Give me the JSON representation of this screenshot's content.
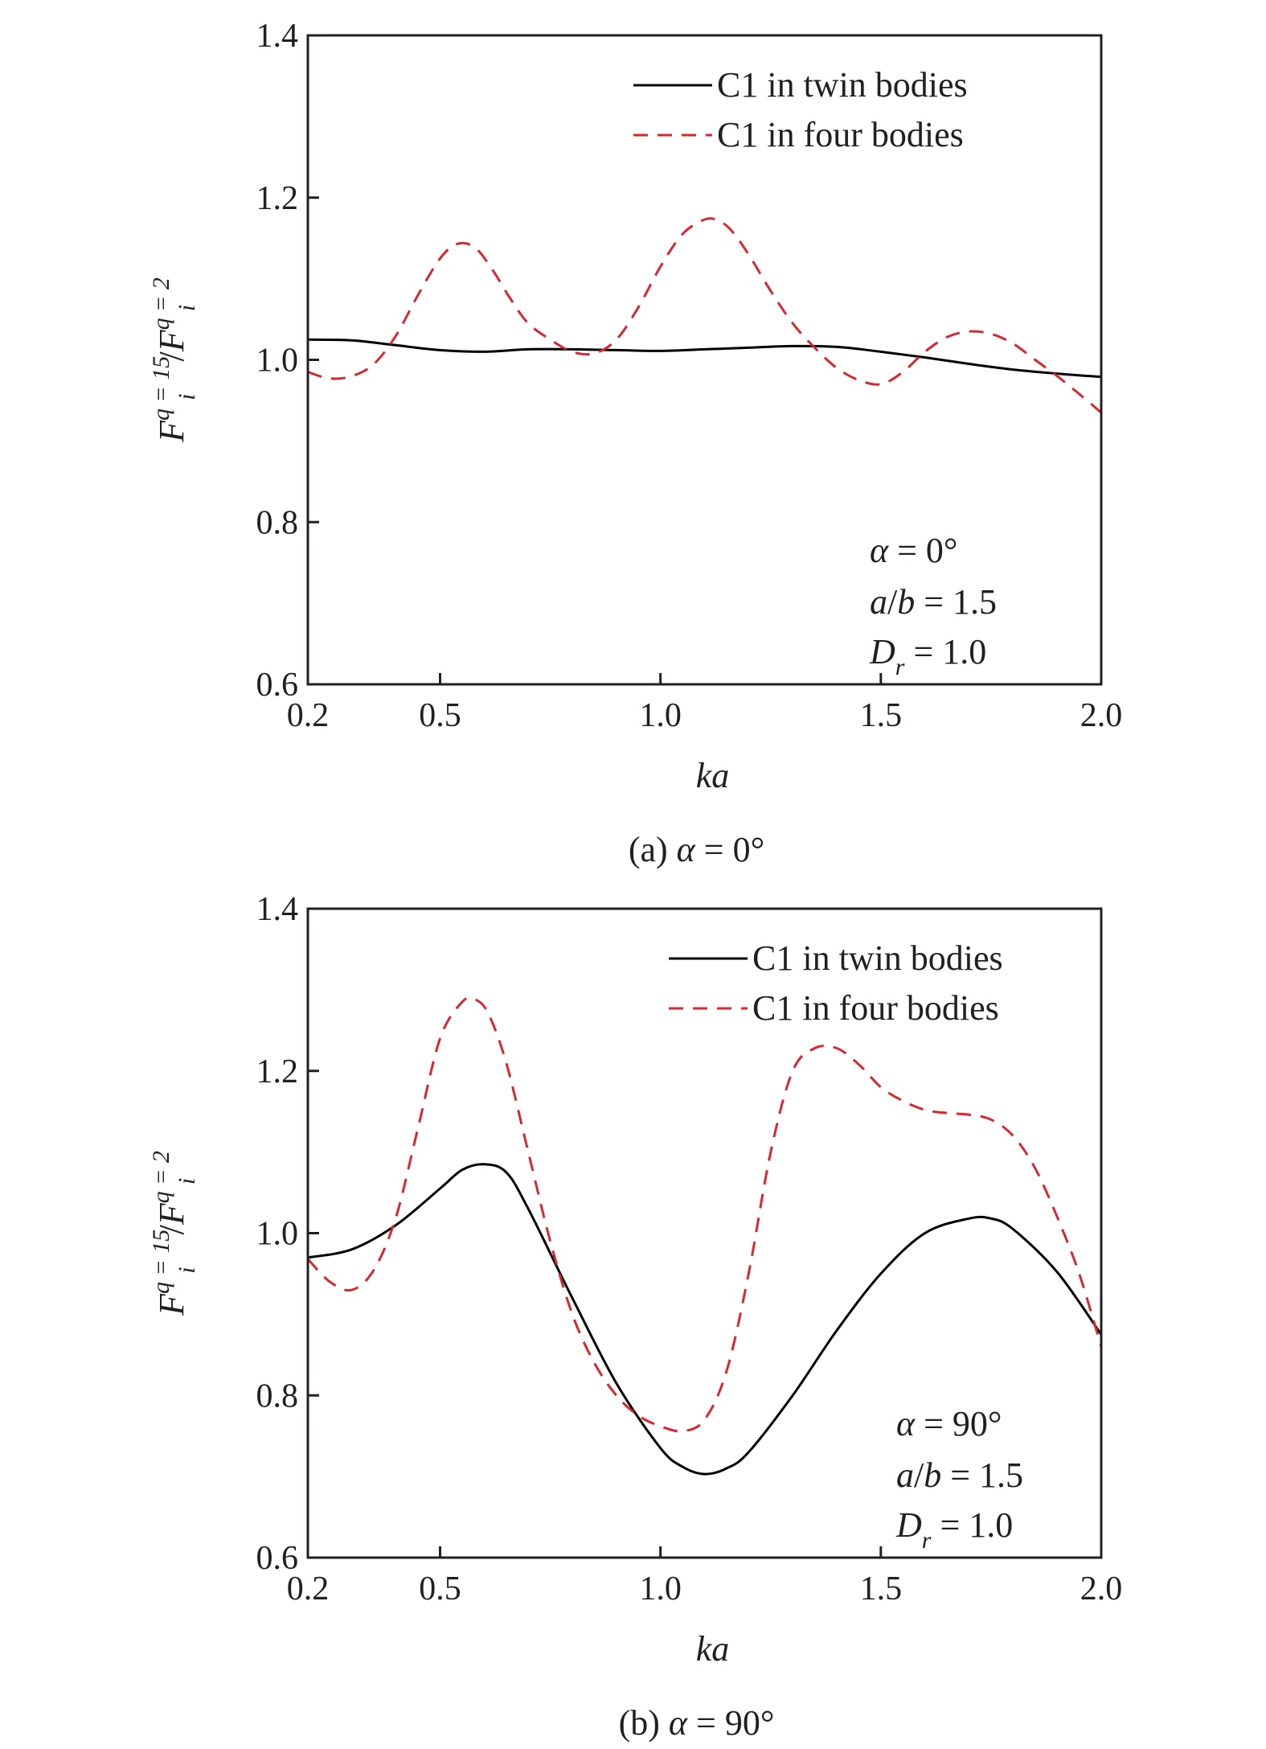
{
  "chart_data": [
    {
      "type": "line",
      "panel_caption": {
        "prefix": "(a)",
        "symbol": "α",
        "value": "= 0°"
      },
      "xlabel": "ka",
      "ylabel": {
        "base": "F",
        "sub": "i",
        "sup_num": "q = 15",
        "sup_den": "q = 2"
      },
      "xlim": [
        0.2,
        2.0
      ],
      "ylim": [
        0.6,
        1.4
      ],
      "xticks": [
        0.2,
        0.5,
        1.0,
        1.5,
        2.0
      ],
      "xtick_labels": [
        "0.2",
        "0.5",
        "1.0",
        "1.5",
        "2.0"
      ],
      "yticks": [
        0.6,
        0.8,
        1.0,
        1.2,
        1.4
      ],
      "ytick_labels": [
        "0.6",
        "0.8",
        "1.0",
        "1.2",
        "1.4"
      ],
      "legend_position": "top-right",
      "annotation": {
        "line1": {
          "sym": "α",
          "rest": " = 0°"
        },
        "line2": {
          "a": "a",
          "slash": "/",
          "b": "b",
          "rest": " = 1.5"
        },
        "line3": {
          "sym": "D",
          "sub": "r",
          "rest": " = 1.0"
        }
      },
      "series": [
        {
          "name": "C1 in twin bodies",
          "style": "solid",
          "color": "#000000",
          "x": [
            0.2,
            0.3,
            0.4,
            0.5,
            0.6,
            0.7,
            0.8,
            0.9,
            1.0,
            1.1,
            1.2,
            1.3,
            1.4,
            1.5,
            1.6,
            1.7,
            1.8,
            1.9,
            2.0
          ],
          "y": [
            1.025,
            1.024,
            1.018,
            1.012,
            1.01,
            1.013,
            1.013,
            1.012,
            1.011,
            1.013,
            1.015,
            1.017,
            1.016,
            1.01,
            1.003,
            0.995,
            0.988,
            0.983,
            0.979
          ]
        },
        {
          "name": "C1 in four bodies",
          "style": "dashed",
          "color": "#d7282f",
          "x": [
            0.2,
            0.25,
            0.3,
            0.35,
            0.4,
            0.45,
            0.5,
            0.54,
            0.58,
            0.62,
            0.66,
            0.7,
            0.75,
            0.8,
            0.85,
            0.9,
            0.95,
            1.0,
            1.05,
            1.1,
            1.13,
            1.16,
            1.2,
            1.25,
            1.3,
            1.35,
            1.4,
            1.45,
            1.5,
            1.55,
            1.6,
            1.65,
            1.7,
            1.75,
            1.8,
            1.85,
            1.9,
            1.95,
            2.0
          ],
          "y": [
            0.985,
            0.977,
            0.98,
            0.995,
            1.03,
            1.08,
            1.125,
            1.143,
            1.138,
            1.11,
            1.075,
            1.045,
            1.025,
            1.01,
            1.008,
            1.025,
            1.065,
            1.115,
            1.155,
            1.173,
            1.172,
            1.16,
            1.13,
            1.085,
            1.045,
            1.015,
            0.99,
            0.975,
            0.97,
            0.985,
            1.01,
            1.028,
            1.035,
            1.032,
            1.02,
            1.0,
            0.98,
            0.958,
            0.935
          ]
        }
      ]
    },
    {
      "type": "line",
      "panel_caption": {
        "prefix": "(b)",
        "symbol": "α",
        "value": "= 90°"
      },
      "xlabel": "ka",
      "ylabel": {
        "base": "F",
        "sub": "i",
        "sup_num": "q = 15",
        "sup_den": "q = 2"
      },
      "xlim": [
        0.2,
        2.0
      ],
      "ylim": [
        0.6,
        1.4
      ],
      "xticks": [
        0.2,
        0.5,
        1.0,
        1.5,
        2.0
      ],
      "xtick_labels": [
        "0.2",
        "0.5",
        "1.0",
        "1.5",
        "2.0"
      ],
      "yticks": [
        0.6,
        0.8,
        1.0,
        1.2,
        1.4
      ],
      "ytick_labels": [
        "0.6",
        "0.8",
        "1.0",
        "1.2",
        "1.4"
      ],
      "legend_position": "top-right",
      "annotation": {
        "line1": {
          "sym": "α",
          "rest": " = 90°"
        },
        "line2": {
          "a": "a",
          "slash": "/",
          "b": "b",
          "rest": " = 1.5"
        },
        "line3": {
          "sym": "D",
          "sub": "r",
          "rest": " = 1.0"
        }
      },
      "series": [
        {
          "name": "C1 in twin bodies",
          "style": "solid",
          "color": "#000000",
          "x": [
            0.2,
            0.3,
            0.4,
            0.5,
            0.55,
            0.6,
            0.65,
            0.7,
            0.8,
            0.9,
            1.0,
            1.05,
            1.1,
            1.15,
            1.2,
            1.3,
            1.4,
            1.5,
            1.6,
            1.7,
            1.75,
            1.8,
            1.9,
            2.0
          ],
          "y": [
            0.97,
            0.98,
            1.01,
            1.055,
            1.078,
            1.085,
            1.075,
            1.03,
            0.92,
            0.815,
            0.735,
            0.712,
            0.703,
            0.71,
            0.73,
            0.8,
            0.88,
            0.95,
            1.0,
            1.018,
            1.018,
            1.005,
            0.952,
            0.875
          ]
        },
        {
          "name": "C1 in four bodies",
          "style": "dashed",
          "color": "#d7282f",
          "x": [
            0.2,
            0.25,
            0.3,
            0.35,
            0.4,
            0.45,
            0.5,
            0.55,
            0.58,
            0.61,
            0.65,
            0.7,
            0.75,
            0.8,
            0.85,
            0.9,
            0.95,
            1.0,
            1.05,
            1.1,
            1.15,
            1.2,
            1.25,
            1.3,
            1.35,
            1.4,
            1.45,
            1.5,
            1.55,
            1.6,
            1.65,
            1.7,
            1.75,
            1.8,
            1.85,
            1.9,
            1.95,
            2.0
          ],
          "y": [
            0.968,
            0.94,
            0.93,
            0.955,
            1.02,
            1.13,
            1.24,
            1.285,
            1.288,
            1.27,
            1.21,
            1.1,
            0.99,
            0.9,
            0.84,
            0.8,
            0.775,
            0.762,
            0.756,
            0.77,
            0.83,
            0.95,
            1.1,
            1.2,
            1.228,
            1.228,
            1.208,
            1.18,
            1.163,
            1.152,
            1.148,
            1.146,
            1.14,
            1.12,
            1.08,
            1.02,
            0.95,
            0.86
          ]
        }
      ]
    }
  ]
}
